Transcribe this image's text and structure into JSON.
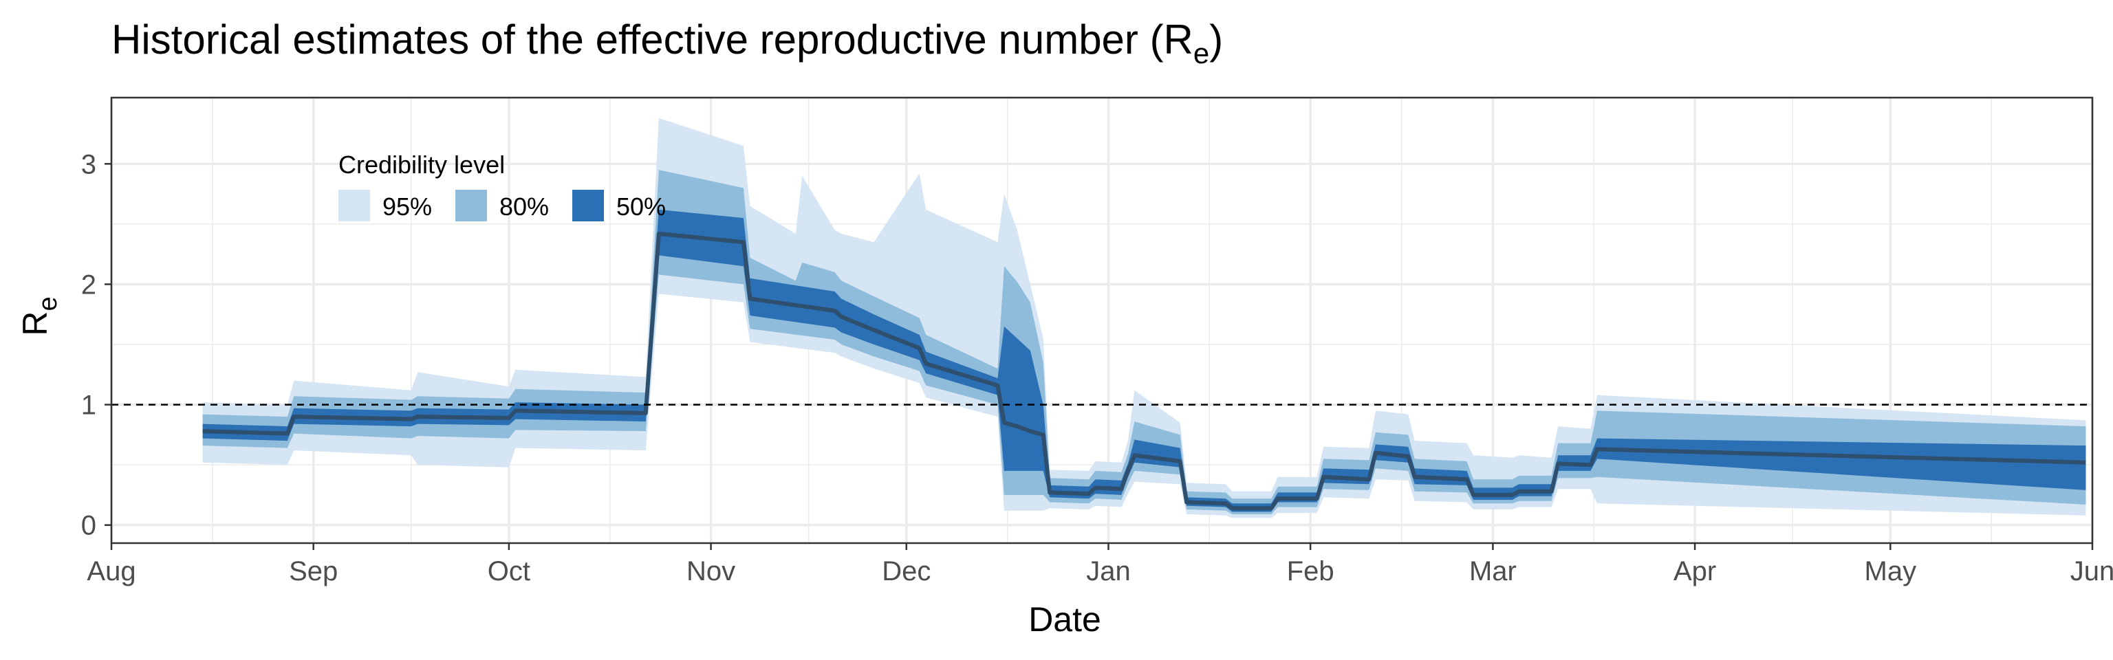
{
  "chart_data": {
    "type": "area",
    "title": "Historical estimates of the effective reproductive number (R",
    "title_subscript": "e",
    "title_suffix": ")",
    "xlabel": "Date",
    "ylabel": "R",
    "ylabel_subscript": "e",
    "x_axis": {
      "start_day": 0,
      "end_day": 304,
      "ticks": [
        {
          "label": "Aug",
          "day": 0
        },
        {
          "label": "Sep",
          "day": 31
        },
        {
          "label": "Oct",
          "day": 61
        },
        {
          "label": "Nov",
          "day": 92
        },
        {
          "label": "Dec",
          "day": 122
        },
        {
          "label": "Jan",
          "day": 153
        },
        {
          "label": "Feb",
          "day": 184
        },
        {
          "label": "Mar",
          "day": 212
        },
        {
          "label": "Apr",
          "day": 243
        },
        {
          "label": "May",
          "day": 273
        },
        {
          "label": "Jun",
          "day": 304
        }
      ]
    },
    "y_axis": {
      "ylim": [
        -0.15,
        3.55
      ],
      "ticks": [
        0,
        1,
        2,
        3
      ],
      "minor_ticks": [
        0.5,
        1.5,
        2.5
      ]
    },
    "reference_line": {
      "y": 1,
      "style": "dashed"
    },
    "legend": {
      "title": "Credibility level",
      "placement": "top-left",
      "entries": [
        {
          "label": "95%",
          "color": "#d6e5f4"
        },
        {
          "label": "80%",
          "color": "#8fbcdb"
        },
        {
          "label": "50%",
          "color": "#2b6fb4"
        }
      ]
    },
    "colors": {
      "band95": "#d6e5f4",
      "band80": "#8fbcdb",
      "band50": "#2b6fb4",
      "median": "#2f4f6f",
      "grid": "#ebebeb",
      "panel_border": "#333333",
      "reference": "#000000"
    },
    "series": {
      "day": [
        14,
        27,
        28,
        46,
        47,
        61,
        62,
        82,
        84,
        97,
        98,
        111,
        112,
        117,
        124,
        125,
        136,
        137,
        139,
        141,
        143,
        144,
        150,
        151,
        155,
        156,
        157,
        164,
        165,
        171,
        172,
        178,
        179,
        185,
        186,
        193,
        194,
        199,
        200,
        208,
        209,
        215,
        216,
        221,
        222,
        227,
        228,
        303
      ],
      "median": [
        0.78,
        0.76,
        0.9,
        0.88,
        0.9,
        0.89,
        0.95,
        0.93,
        2.42,
        2.35,
        1.88,
        1.78,
        1.73,
        1.62,
        1.47,
        1.34,
        1.16,
        0.85,
        0.82,
        0.78,
        0.75,
        0.27,
        0.26,
        0.31,
        0.3,
        0.45,
        0.58,
        0.53,
        0.19,
        0.18,
        0.14,
        0.14,
        0.22,
        0.22,
        0.4,
        0.38,
        0.6,
        0.57,
        0.4,
        0.38,
        0.25,
        0.25,
        0.28,
        0.28,
        0.51,
        0.5,
        0.63,
        0.52
      ],
      "lo50": [
        0.72,
        0.7,
        0.84,
        0.82,
        0.84,
        0.83,
        0.88,
        0.86,
        2.24,
        2.15,
        1.74,
        1.64,
        1.6,
        1.5,
        1.37,
        1.26,
        1.08,
        0.45,
        0.45,
        0.45,
        0.45,
        0.23,
        0.22,
        0.26,
        0.25,
        0.4,
        0.52,
        0.48,
        0.16,
        0.15,
        0.11,
        0.11,
        0.19,
        0.19,
        0.35,
        0.34,
        0.54,
        0.52,
        0.34,
        0.33,
        0.21,
        0.21,
        0.24,
        0.24,
        0.45,
        0.45,
        0.55,
        0.29
      ],
      "hi50": [
        0.84,
        0.82,
        0.97,
        0.95,
        0.97,
        0.96,
        1.02,
        1.0,
        2.62,
        2.55,
        2.05,
        1.94,
        1.88,
        1.75,
        1.58,
        1.44,
        1.22,
        1.65,
        1.55,
        1.45,
        1.0,
        0.33,
        0.32,
        0.38,
        0.37,
        0.51,
        0.71,
        0.64,
        0.23,
        0.22,
        0.18,
        0.18,
        0.27,
        0.27,
        0.47,
        0.46,
        0.67,
        0.65,
        0.47,
        0.45,
        0.31,
        0.31,
        0.34,
        0.34,
        0.58,
        0.58,
        0.72,
        0.66
      ],
      "lo80": [
        0.66,
        0.64,
        0.76,
        0.72,
        0.74,
        0.72,
        0.79,
        0.78,
        2.08,
        2.0,
        1.63,
        1.54,
        1.5,
        1.4,
        1.28,
        1.16,
        1.0,
        0.25,
        0.25,
        0.25,
        0.25,
        0.19,
        0.18,
        0.22,
        0.21,
        0.34,
        0.45,
        0.42,
        0.13,
        0.12,
        0.09,
        0.09,
        0.15,
        0.15,
        0.3,
        0.29,
        0.47,
        0.45,
        0.28,
        0.27,
        0.18,
        0.18,
        0.2,
        0.2,
        0.39,
        0.39,
        0.4,
        0.17
      ],
      "hi80": [
        0.92,
        0.9,
        1.07,
        1.04,
        1.07,
        1.05,
        1.13,
        1.1,
        2.95,
        2.8,
        2.22,
        2.1,
        2.03,
        1.9,
        1.72,
        1.58,
        1.3,
        2.15,
        2.02,
        1.85,
        1.35,
        0.39,
        0.38,
        0.45,
        0.44,
        0.59,
        0.86,
        0.75,
        0.28,
        0.27,
        0.22,
        0.22,
        0.32,
        0.32,
        0.55,
        0.54,
        0.77,
        0.75,
        0.55,
        0.53,
        0.38,
        0.38,
        0.41,
        0.41,
        0.68,
        0.68,
        0.95,
        0.82
      ],
      "lo95": [
        0.52,
        0.5,
        0.62,
        0.58,
        0.5,
        0.48,
        0.64,
        0.62,
        1.92,
        1.85,
        1.52,
        1.43,
        1.4,
        1.3,
        1.18,
        1.06,
        0.9,
        0.12,
        0.12,
        0.12,
        0.12,
        0.14,
        0.13,
        0.16,
        0.15,
        0.26,
        0.36,
        0.34,
        0.09,
        0.08,
        0.06,
        0.06,
        0.1,
        0.1,
        0.23,
        0.22,
        0.38,
        0.37,
        0.2,
        0.19,
        0.13,
        0.13,
        0.15,
        0.15,
        0.3,
        0.3,
        0.18,
        0.08
      ],
      "hi95": [
        1.02,
        1.0,
        1.2,
        1.12,
        1.27,
        1.15,
        1.29,
        1.23,
        3.38,
        3.15,
        2.65,
        2.45,
        2.42,
        2.35,
        2.92,
        2.62,
        2.35,
        2.75,
        2.45,
        2.0,
        1.55,
        0.46,
        0.45,
        0.53,
        0.52,
        0.7,
        1.12,
        0.85,
        0.35,
        0.34,
        0.28,
        0.28,
        0.4,
        0.4,
        0.65,
        0.64,
        0.95,
        0.92,
        0.7,
        0.68,
        0.58,
        0.56,
        0.58,
        0.56,
        0.82,
        0.8,
        1.08,
        0.87
      ]
    },
    "peak_spikes": [
      {
        "day": 105,
        "hi95": 2.42,
        "hi80": 2.03
      },
      {
        "day": 106,
        "hi95": 2.9,
        "hi80": 2.18
      }
    ]
  }
}
